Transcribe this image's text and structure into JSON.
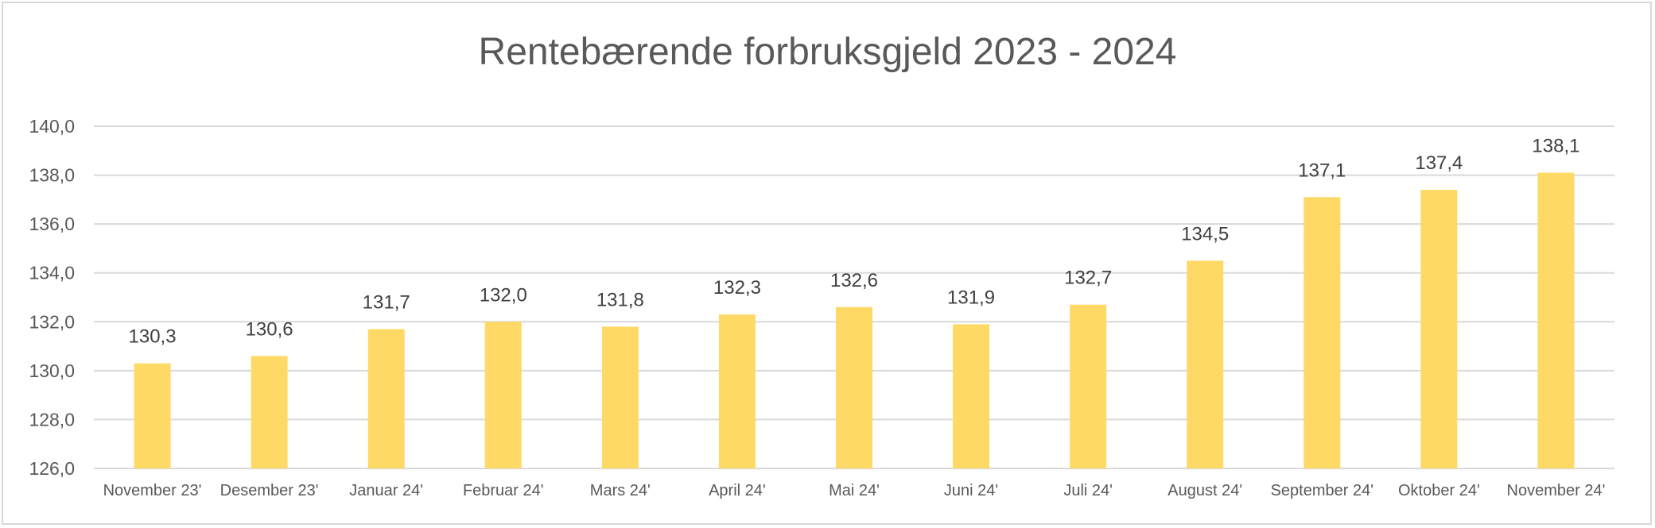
{
  "chart_data": {
    "type": "bar",
    "title": "Rentebærende forbruksgjeld 2023 - 2024",
    "xlabel": "",
    "ylabel": "",
    "categories": [
      "November 23'",
      "Desember 23'",
      "Januar 24'",
      "Februar 24'",
      "Mars 24'",
      "April 24'",
      "Mai 24'",
      "Juni 24'",
      "Juli 24'",
      "August 24'",
      "September 24'",
      "Oktober 24'",
      "November 24'"
    ],
    "values": [
      130.3,
      130.6,
      131.7,
      132.0,
      131.8,
      132.3,
      132.6,
      131.9,
      132.7,
      134.5,
      137.1,
      137.4,
      138.1
    ],
    "data_labels": [
      "130,3",
      "130,6",
      "131,7",
      "132,0",
      "131,8",
      "132,3",
      "132,6",
      "131,9",
      "132,7",
      "134,5",
      "137,1",
      "137,4",
      "138,1"
    ],
    "ylim": [
      126,
      140
    ],
    "yticks": [
      126,
      128,
      130,
      132,
      134,
      136,
      138,
      140
    ],
    "ytick_labels": [
      "126,0",
      "128,0",
      "130,0",
      "132,0",
      "134,0",
      "136,0",
      "138,0",
      "140,0"
    ],
    "grid": true,
    "legend": false,
    "bar_color": "#FFD966",
    "grid_color": "#d9d9d9"
  }
}
